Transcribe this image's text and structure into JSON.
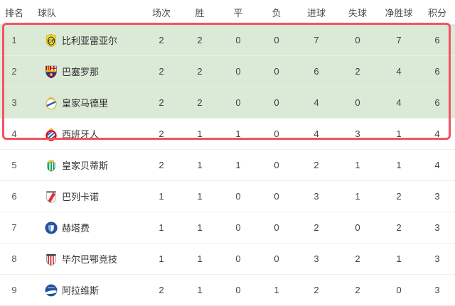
{
  "table": {
    "columns": [
      {
        "key": "rank",
        "label": "排名"
      },
      {
        "key": "team",
        "label": "球队"
      },
      {
        "key": "played",
        "label": "场次"
      },
      {
        "key": "won",
        "label": "胜"
      },
      {
        "key": "drawn",
        "label": "平"
      },
      {
        "key": "lost",
        "label": "负"
      },
      {
        "key": "goals_for",
        "label": "进球"
      },
      {
        "key": "goals_against",
        "label": "失球"
      },
      {
        "key": "goal_diff",
        "label": "净胜球"
      },
      {
        "key": "points",
        "label": "积分"
      }
    ],
    "rows": [
      {
        "rank": "1",
        "team": "比利亚雷亚尔",
        "badge": "villarreal",
        "stats": [
          "2",
          "2",
          "0",
          "0",
          "7",
          "0",
          "7",
          "6"
        ],
        "zone": "promotion"
      },
      {
        "rank": "2",
        "team": "巴塞罗那",
        "badge": "barcelona",
        "stats": [
          "2",
          "2",
          "0",
          "0",
          "6",
          "2",
          "4",
          "6"
        ],
        "zone": "promotion"
      },
      {
        "rank": "3",
        "team": "皇家马德里",
        "badge": "realmadrid",
        "stats": [
          "2",
          "2",
          "0",
          "0",
          "4",
          "0",
          "4",
          "6"
        ],
        "zone": "promotion"
      },
      {
        "rank": "4",
        "team": "西班牙人",
        "badge": "espanyol",
        "stats": [
          "2",
          "1",
          "1",
          "0",
          "4",
          "3",
          "1",
          "4"
        ],
        "zone": "none"
      },
      {
        "rank": "5",
        "team": "皇家贝蒂斯",
        "badge": "betis",
        "stats": [
          "2",
          "1",
          "1",
          "0",
          "2",
          "1",
          "1",
          "4"
        ],
        "zone": "none"
      },
      {
        "rank": "6",
        "team": "巴列卡诺",
        "badge": "rayo",
        "stats": [
          "1",
          "1",
          "0",
          "0",
          "3",
          "1",
          "2",
          "3"
        ],
        "zone": "none"
      },
      {
        "rank": "7",
        "team": "赫塔费",
        "badge": "getafe",
        "stats": [
          "1",
          "1",
          "0",
          "0",
          "2",
          "0",
          "2",
          "3"
        ],
        "zone": "none"
      },
      {
        "rank": "8",
        "team": "毕尔巴鄂竞技",
        "badge": "athletic",
        "stats": [
          "1",
          "1",
          "0",
          "0",
          "3",
          "2",
          "1",
          "3"
        ],
        "zone": "none"
      },
      {
        "rank": "9",
        "team": "阿拉维斯",
        "badge": "alaves",
        "stats": [
          "2",
          "1",
          "0",
          "1",
          "2",
          "2",
          "0",
          "3"
        ],
        "zone": "none"
      }
    ],
    "highlight": {
      "rows_covered": "1-4",
      "border_color": "#f4535f"
    },
    "colors": {
      "promotion_row_bg": "#dbe9d7",
      "header_text": "#4d4d4d",
      "cell_text": "#3f3f3f"
    }
  }
}
